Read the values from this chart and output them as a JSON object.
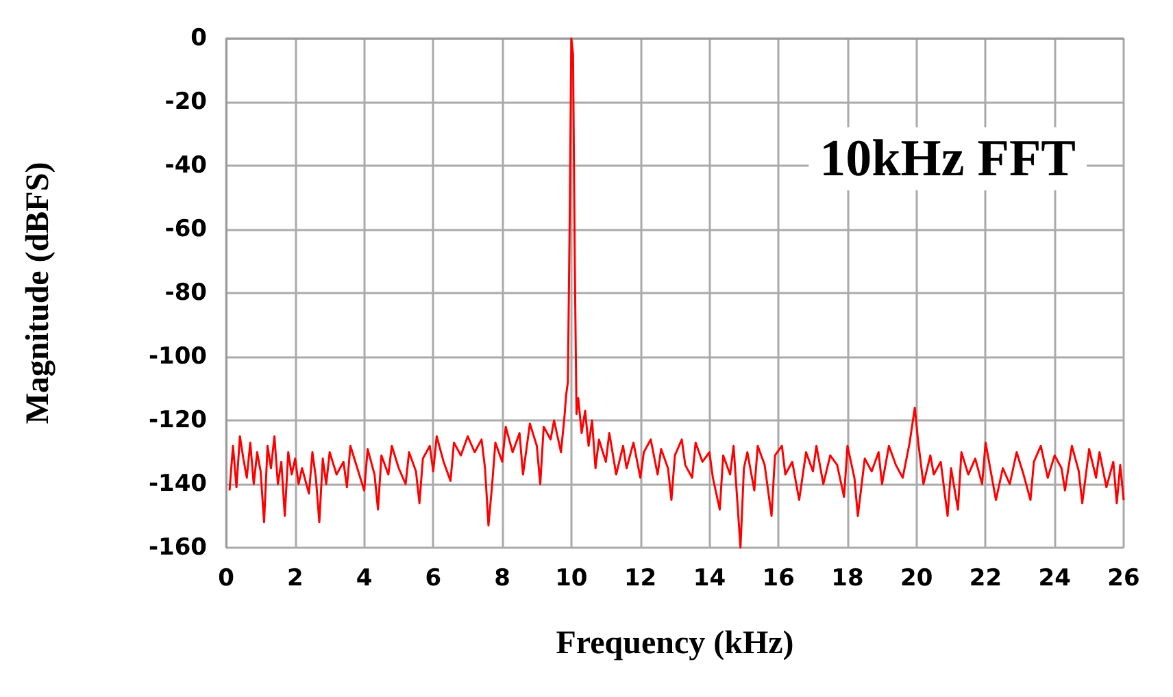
{
  "chart_data": {
    "type": "line",
    "xlabel": "Frequency (kHz)",
    "ylabel": "Magnitude (dBFS)",
    "annotations": [
      "10kHz FFT"
    ],
    "xlim": [
      0,
      26
    ],
    "xticks": [
      0,
      2,
      4,
      6,
      8,
      10,
      12,
      14,
      16,
      18,
      20,
      22,
      24,
      26
    ],
    "ylim": [
      -160,
      0
    ],
    "yticks": [
      -160,
      -140,
      -120,
      -100,
      -80,
      -60,
      -40,
      -20,
      0
    ],
    "grid": true,
    "marker": "none",
    "line_style": "solid",
    "series": [
      {
        "color": "#ff0000",
        "x": [
          0.1,
          0.2,
          0.3,
          0.4,
          0.5,
          0.6,
          0.7,
          0.8,
          0.9,
          1.0,
          1.1,
          1.2,
          1.3,
          1.4,
          1.5,
          1.6,
          1.7,
          1.8,
          1.9,
          2.0,
          2.1,
          2.2,
          2.4,
          2.5,
          2.6,
          2.7,
          2.8,
          2.9,
          3.0,
          3.2,
          3.4,
          3.5,
          3.6,
          3.8,
          4.0,
          4.1,
          4.3,
          4.4,
          4.5,
          4.7,
          4.8,
          5.0,
          5.2,
          5.3,
          5.5,
          5.6,
          5.7,
          5.9,
          6.0,
          6.1,
          6.3,
          6.5,
          6.6,
          6.8,
          7.0,
          7.2,
          7.4,
          7.5,
          7.6,
          7.7,
          7.8,
          8.0,
          8.1,
          8.3,
          8.5,
          8.6,
          8.8,
          9.0,
          9.1,
          9.2,
          9.4,
          9.5,
          9.7,
          9.8,
          9.85,
          9.9,
          9.95,
          10.0,
          10.05,
          10.1,
          10.15,
          10.2,
          10.3,
          10.4,
          10.5,
          10.6,
          10.7,
          10.8,
          11.0,
          11.1,
          11.3,
          11.5,
          11.6,
          11.8,
          12.0,
          12.1,
          12.3,
          12.5,
          12.6,
          12.8,
          12.9,
          13.0,
          13.2,
          13.3,
          13.5,
          13.6,
          13.8,
          14.0,
          14.1,
          14.3,
          14.4,
          14.6,
          14.7,
          14.9,
          15.0,
          15.1,
          15.3,
          15.4,
          15.6,
          15.8,
          15.9,
          16.1,
          16.2,
          16.4,
          16.6,
          16.8,
          17.0,
          17.1,
          17.3,
          17.5,
          17.7,
          17.9,
          18.0,
          18.2,
          18.3,
          18.5,
          18.7,
          18.9,
          19.0,
          19.2,
          19.4,
          19.6,
          19.8,
          19.95,
          20.05,
          20.2,
          20.4,
          20.5,
          20.7,
          20.9,
          21.0,
          21.2,
          21.3,
          21.5,
          21.7,
          21.9,
          22.0,
          22.1,
          22.3,
          22.5,
          22.7,
          22.9,
          23.1,
          23.3,
          23.4,
          23.6,
          23.8,
          24.0,
          24.2,
          24.3,
          24.5,
          24.7,
          24.8,
          25.0,
          25.2,
          25.3,
          25.5,
          25.7,
          25.8,
          25.9,
          26.0
        ],
        "values": [
          -142,
          -128,
          -141,
          -125,
          -132,
          -138,
          -127,
          -140,
          -130,
          -136,
          -152,
          -128,
          -135,
          -125,
          -140,
          -133,
          -150,
          -130,
          -137,
          -132,
          -140,
          -135,
          -143,
          -130,
          -138,
          -152,
          -132,
          -140,
          -130,
          -137,
          -133,
          -141,
          -128,
          -135,
          -142,
          -129,
          -137,
          -148,
          -131,
          -137,
          -128,
          -135,
          -140,
          -130,
          -136,
          -146,
          -132,
          -128,
          -136,
          -125,
          -133,
          -139,
          -127,
          -131,
          -125,
          -130,
          -126,
          -135,
          -153,
          -141,
          -127,
          -133,
          -122,
          -130,
          -124,
          -137,
          -121,
          -128,
          -140,
          -122,
          -126,
          -120,
          -130,
          -119,
          -112,
          -108,
          -60,
          0,
          -5,
          -70,
          -118,
          -113,
          -124,
          -117,
          -128,
          -120,
          -135,
          -126,
          -133,
          -124,
          -137,
          -128,
          -135,
          -127,
          -138,
          -130,
          -126,
          -137,
          -129,
          -135,
          -145,
          -131,
          -126,
          -134,
          -138,
          -127,
          -133,
          -130,
          -138,
          -148,
          -131,
          -137,
          -128,
          -160,
          -135,
          -130,
          -142,
          -128,
          -134,
          -150,
          -131,
          -128,
          -137,
          -133,
          -145,
          -130,
          -136,
          -128,
          -140,
          -131,
          -134,
          -144,
          -128,
          -138,
          -150,
          -132,
          -136,
          -130,
          -140,
          -128,
          -134,
          -138,
          -127,
          -116,
          -127,
          -140,
          -131,
          -137,
          -133,
          -150,
          -135,
          -148,
          -130,
          -137,
          -132,
          -140,
          -127,
          -133,
          -145,
          -135,
          -140,
          -130,
          -137,
          -145,
          -133,
          -128,
          -138,
          -131,
          -135,
          -142,
          -128,
          -136,
          -146,
          -129,
          -138,
          -130,
          -141,
          -133,
          -146,
          -134,
          -145
        ]
      }
    ]
  }
}
